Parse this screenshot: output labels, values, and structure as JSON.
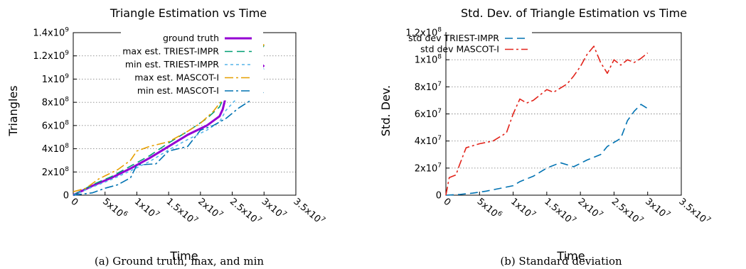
{
  "chart_data": [
    {
      "type": "line",
      "title": "Triangle Estimation vs Time",
      "xlabel": "Time",
      "ylabel": "Triangles",
      "caption": "(a) Ground truth, max, and min",
      "xlim": [
        0,
        35000000
      ],
      "ylim": [
        0,
        1400000000
      ],
      "grid": "horizontal-dotted",
      "legend_position": "top-right",
      "x_ticks": [
        {
          "v": 0,
          "mant": "0",
          "exp": ""
        },
        {
          "v": 5000000,
          "mant": "5x10",
          "exp": "6"
        },
        {
          "v": 10000000,
          "mant": "1x10",
          "exp": "7"
        },
        {
          "v": 15000000,
          "mant": "1.5x10",
          "exp": "7"
        },
        {
          "v": 20000000,
          "mant": "2x10",
          "exp": "7"
        },
        {
          "v": 25000000,
          "mant": "2.5x10",
          "exp": "7"
        },
        {
          "v": 30000000,
          "mant": "3x10",
          "exp": "7"
        },
        {
          "v": 35000000,
          "mant": "3.5x10",
          "exp": "7"
        }
      ],
      "y_ticks": [
        {
          "v": 0,
          "mant": "0",
          "exp": ""
        },
        {
          "v": 200000000,
          "mant": "2x10",
          "exp": "8"
        },
        {
          "v": 400000000,
          "mant": "4x10",
          "exp": "8"
        },
        {
          "v": 600000000,
          "mant": "6x10",
          "exp": "8"
        },
        {
          "v": 800000000,
          "mant": "8x10",
          "exp": "8"
        },
        {
          "v": 1000000000,
          "mant": "1x10",
          "exp": "9"
        },
        {
          "v": 1200000000,
          "mant": "1.2x10",
          "exp": "9"
        },
        {
          "v": 1400000000,
          "mant": "1.4x10",
          "exp": "9"
        }
      ],
      "series": [
        {
          "name": "ground truth",
          "color": "#9400d3",
          "dash": "solid",
          "points": [
            [
              0,
              0
            ],
            [
              3000000,
              80000000
            ],
            [
              6000000,
              150000000
            ],
            [
              9000000,
              230000000
            ],
            [
              12000000,
              320000000
            ],
            [
              15000000,
              420000000
            ],
            [
              18000000,
              520000000
            ],
            [
              21000000,
              600000000
            ],
            [
              23000000,
              680000000
            ],
            [
              23500000,
              740000000
            ],
            [
              24000000,
              850000000
            ],
            [
              26000000,
              930000000
            ],
            [
              28000000,
              1010000000
            ],
            [
              30000000,
              1120000000
            ]
          ]
        },
        {
          "name": "max est. TRIEST-IMPR",
          "color": "#009e73",
          "dash": "long",
          "points": [
            [
              0,
              0
            ],
            [
              3000000,
              90000000
            ],
            [
              6000000,
              160000000
            ],
            [
              9000000,
              250000000
            ],
            [
              12000000,
              340000000
            ],
            [
              15000000,
              450000000
            ],
            [
              18000000,
              550000000
            ],
            [
              21000000,
              660000000
            ],
            [
              23000000,
              760000000
            ],
            [
              24000000,
              880000000
            ],
            [
              26000000,
              1000000000
            ],
            [
              28000000,
              1150000000
            ],
            [
              30000000,
              1290000000
            ]
          ]
        },
        {
          "name": "min est. TRIEST-IMPR",
          "color": "#56b4e9",
          "dash": "short",
          "points": [
            [
              0,
              0
            ],
            [
              3000000,
              70000000
            ],
            [
              6000000,
              135000000
            ],
            [
              9000000,
              210000000
            ],
            [
              12000000,
              290000000
            ],
            [
              15000000,
              390000000
            ],
            [
              18000000,
              480000000
            ],
            [
              21000000,
              560000000
            ],
            [
              23000000,
              630000000
            ],
            [
              24000000,
              730000000
            ],
            [
              26000000,
              850000000
            ],
            [
              28000000,
              960000000
            ],
            [
              30000000,
              1090000000
            ]
          ]
        },
        {
          "name": "max est. MASCOT-I",
          "color": "#e69f00",
          "dash": "dashdot",
          "points": [
            [
              0,
              30000000
            ],
            [
              2000000,
              60000000
            ],
            [
              4000000,
              140000000
            ],
            [
              7000000,
              220000000
            ],
            [
              9000000,
              300000000
            ],
            [
              10000000,
              380000000
            ],
            [
              12000000,
              420000000
            ],
            [
              15000000,
              460000000
            ],
            [
              18000000,
              550000000
            ],
            [
              20000000,
              620000000
            ],
            [
              22000000,
              720000000
            ],
            [
              24000000,
              860000000
            ],
            [
              26000000,
              1020000000
            ],
            [
              28000000,
              1150000000
            ],
            [
              30000000,
              1300000000
            ]
          ]
        },
        {
          "name": "min est. MASCOT-I",
          "color": "#0072b2",
          "dash": "dashdot",
          "points": [
            [
              0,
              0
            ],
            [
              3000000,
              20000000
            ],
            [
              5000000,
              60000000
            ],
            [
              7000000,
              90000000
            ],
            [
              9000000,
              150000000
            ],
            [
              10000000,
              260000000
            ],
            [
              13000000,
              270000000
            ],
            [
              15000000,
              380000000
            ],
            [
              18000000,
              420000000
            ],
            [
              20000000,
              560000000
            ],
            [
              22000000,
              600000000
            ],
            [
              24000000,
              660000000
            ],
            [
              26000000,
              750000000
            ],
            [
              28000000,
              820000000
            ],
            [
              30000000,
              890000000
            ]
          ]
        }
      ]
    },
    {
      "type": "line",
      "title": "Std. Dev. of Triangle Estimation vs Time",
      "xlabel": "Time",
      "ylabel": "Std. Dev.",
      "caption": "(b) Standard deviation",
      "xlim": [
        0,
        35000000
      ],
      "ylim": [
        0,
        120000000
      ],
      "grid": "horizontal-dotted",
      "legend_position": "top-left",
      "x_ticks": [
        {
          "v": 0,
          "mant": "0",
          "exp": ""
        },
        {
          "v": 5000000,
          "mant": "5x10",
          "exp": "6"
        },
        {
          "v": 10000000,
          "mant": "1x10",
          "exp": "7"
        },
        {
          "v": 15000000,
          "mant": "1.5x10",
          "exp": "7"
        },
        {
          "v": 20000000,
          "mant": "2x10",
          "exp": "7"
        },
        {
          "v": 25000000,
          "mant": "2.5x10",
          "exp": "7"
        },
        {
          "v": 30000000,
          "mant": "3x10",
          "exp": "7"
        },
        {
          "v": 35000000,
          "mant": "3.5x10",
          "exp": "7"
        }
      ],
      "y_ticks": [
        {
          "v": 0,
          "mant": "0",
          "exp": ""
        },
        {
          "v": 20000000,
          "mant": "2x10",
          "exp": "7"
        },
        {
          "v": 40000000,
          "mant": "4x10",
          "exp": "7"
        },
        {
          "v": 60000000,
          "mant": "6x10",
          "exp": "7"
        },
        {
          "v": 80000000,
          "mant": "8x10",
          "exp": "7"
        },
        {
          "v": 100000000,
          "mant": "1x10",
          "exp": "8"
        },
        {
          "v": 120000000,
          "mant": "1.2x10",
          "exp": "8"
        }
      ],
      "series": [
        {
          "name": "std dev TRIEST-IMPR",
          "color": "#0072b2",
          "dash": "long",
          "points": [
            [
              0,
              0
            ],
            [
              2000000,
              500000
            ],
            [
              4000000,
              1500000
            ],
            [
              6000000,
              3000000
            ],
            [
              8000000,
              5000000
            ],
            [
              10000000,
              7000000
            ],
            [
              11000000,
              10000000
            ],
            [
              13000000,
              14000000
            ],
            [
              15000000,
              20000000
            ],
            [
              17000000,
              24000000
            ],
            [
              19000000,
              21000000
            ],
            [
              21000000,
              26000000
            ],
            [
              23000000,
              30000000
            ],
            [
              24000000,
              36000000
            ],
            [
              26000000,
              42000000
            ],
            [
              27000000,
              55000000
            ],
            [
              28000000,
              62000000
            ],
            [
              29000000,
              67000000
            ],
            [
              30000000,
              64000000
            ]
          ]
        },
        {
          "name": "std dev MASCOT-I",
          "color": "#e2231a",
          "dash": "dashdot",
          "points": [
            [
              0,
              0
            ],
            [
              500000,
              13000000
            ],
            [
              1500000,
              15000000
            ],
            [
              2000000,
              22000000
            ],
            [
              3000000,
              35000000
            ],
            [
              5000000,
              38000000
            ],
            [
              7000000,
              40000000
            ],
            [
              9000000,
              46000000
            ],
            [
              10000000,
              60000000
            ],
            [
              11000000,
              71000000
            ],
            [
              12000000,
              68000000
            ],
            [
              13000000,
              70000000
            ],
            [
              15000000,
              78000000
            ],
            [
              16000000,
              76000000
            ],
            [
              18000000,
              82000000
            ],
            [
              19000000,
              88000000
            ],
            [
              20000000,
              95000000
            ],
            [
              21000000,
              104000000
            ],
            [
              22000000,
              110000000
            ],
            [
              23000000,
              98000000
            ],
            [
              24000000,
              90000000
            ],
            [
              25000000,
              100000000
            ],
            [
              26000000,
              96000000
            ],
            [
              27000000,
              100000000
            ],
            [
              28000000,
              98000000
            ],
            [
              29000000,
              101000000
            ],
            [
              30000000,
              105000000
            ]
          ]
        }
      ]
    }
  ]
}
